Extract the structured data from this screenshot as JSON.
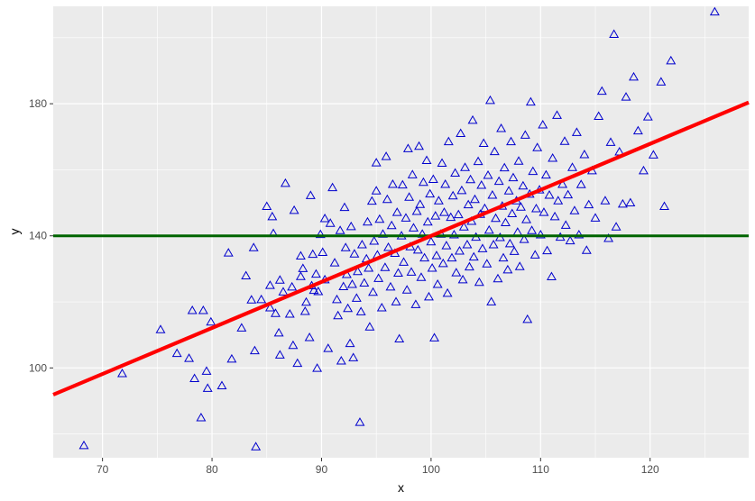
{
  "chart_data": {
    "type": "scatter",
    "title": "",
    "xlabel": "x",
    "ylabel": "y",
    "xlim": [
      65.5,
      129
    ],
    "ylim": [
      72.8,
      209.5
    ],
    "x_ticks": [
      70,
      80,
      90,
      100,
      110,
      120
    ],
    "x_tick_labels": [
      "70",
      "80",
      "90",
      "100",
      "110",
      "120"
    ],
    "y_ticks": [
      100,
      140,
      180
    ],
    "y_tick_labels": [
      "100",
      "140",
      "180"
    ],
    "grid": true,
    "legend": "none",
    "series": [
      {
        "type": "scatter",
        "marker": "open-triangle",
        "color": "#0000cd",
        "points": [
          [
            68.3,
            76.5
          ],
          [
            71.8,
            98.3
          ],
          [
            75.3,
            111.6
          ],
          [
            76.8,
            104.4
          ],
          [
            77.9,
            102.9
          ],
          [
            78.2,
            117.4
          ],
          [
            78.4,
            96.8
          ],
          [
            79.0,
            84.9
          ],
          [
            79.2,
            117.4
          ],
          [
            79.5,
            99.0
          ],
          [
            79.6,
            93.8
          ],
          [
            79.9,
            113.9
          ],
          [
            80.9,
            94.6
          ],
          [
            81.5,
            134.8
          ],
          [
            81.8,
            102.7
          ],
          [
            82.7,
            112.1
          ],
          [
            83.1,
            127.9
          ],
          [
            83.6,
            120.6
          ],
          [
            83.8,
            136.4
          ],
          [
            83.9,
            105.2
          ],
          [
            84.0,
            76.1
          ],
          [
            84.5,
            120.7
          ],
          [
            85.0,
            148.9
          ],
          [
            85.3,
            125.0
          ],
          [
            85.3,
            118.2
          ],
          [
            85.5,
            145.8
          ],
          [
            85.6,
            140.7
          ],
          [
            85.8,
            116.5
          ],
          [
            86.1,
            110.6
          ],
          [
            86.2,
            126.6
          ],
          [
            86.2,
            103.9
          ],
          [
            86.5,
            123.0
          ],
          [
            86.7,
            155.9
          ],
          [
            87.1,
            116.3
          ],
          [
            87.3,
            124.5
          ],
          [
            87.4,
            106.8
          ],
          [
            87.5,
            147.7
          ],
          [
            87.8,
            101.4
          ],
          [
            88.1,
            133.9
          ],
          [
            88.1,
            127.7
          ],
          [
            88.3,
            130.1
          ],
          [
            88.5,
            117.1
          ],
          [
            88.6,
            119.9
          ],
          [
            88.9,
            109.2
          ],
          [
            89.0,
            152.2
          ],
          [
            89.1,
            124.9
          ],
          [
            89.2,
            134.4
          ],
          [
            89.3,
            123.5
          ],
          [
            89.5,
            128.4
          ],
          [
            89.6,
            99.9
          ],
          [
            89.7,
            123.1
          ],
          [
            89.9,
            140.4
          ],
          [
            90.1,
            135.0
          ],
          [
            90.3,
            126.7
          ],
          [
            90.3,
            145.2
          ],
          [
            90.6,
            105.9
          ],
          [
            90.8,
            143.8
          ],
          [
            91.0,
            154.6
          ],
          [
            91.2,
            131.8
          ],
          [
            91.4,
            120.7
          ],
          [
            91.5,
            115.8
          ],
          [
            91.7,
            141.6
          ],
          [
            91.8,
            102.1
          ],
          [
            92.0,
            124.6
          ],
          [
            92.1,
            148.6
          ],
          [
            92.2,
            136.4
          ],
          [
            92.3,
            128.3
          ],
          [
            92.4,
            118.0
          ],
          [
            92.6,
            107.4
          ],
          [
            92.7,
            142.8
          ],
          [
            92.8,
            125.3
          ],
          [
            92.9,
            103.1
          ],
          [
            93.0,
            134.5
          ],
          [
            93.2,
            121.1
          ],
          [
            93.3,
            129.2
          ],
          [
            93.5,
            83.5
          ],
          [
            93.6,
            117.0
          ],
          [
            93.7,
            137.3
          ],
          [
            93.9,
            125.7
          ],
          [
            94.1,
            133.0
          ],
          [
            94.2,
            144.2
          ],
          [
            94.3,
            130.2
          ],
          [
            94.4,
            112.4
          ],
          [
            94.6,
            150.5
          ],
          [
            94.7,
            122.9
          ],
          [
            94.8,
            138.4
          ],
          [
            95.0,
            153.6
          ],
          [
            95.0,
            162.1
          ],
          [
            95.1,
            134.2
          ],
          [
            95.2,
            127.1
          ],
          [
            95.3,
            145.0
          ],
          [
            95.5,
            118.2
          ],
          [
            95.6,
            140.5
          ],
          [
            95.8,
            130.4
          ],
          [
            95.9,
            164.0
          ],
          [
            96.0,
            151.0
          ],
          [
            96.1,
            136.5
          ],
          [
            96.3,
            124.5
          ],
          [
            96.4,
            143.1
          ],
          [
            96.5,
            155.6
          ],
          [
            96.7,
            134.7
          ],
          [
            96.8,
            120.0
          ],
          [
            96.9,
            147.1
          ],
          [
            97.0,
            128.7
          ],
          [
            97.1,
            108.8
          ],
          [
            97.3,
            140.0
          ],
          [
            97.4,
            155.4
          ],
          [
            97.5,
            132.0
          ],
          [
            97.7,
            145.4
          ],
          [
            97.8,
            123.6
          ],
          [
            97.9,
            166.4
          ],
          [
            98.0,
            151.7
          ],
          [
            98.1,
            136.7
          ],
          [
            98.2,
            129.0
          ],
          [
            98.3,
            158.5
          ],
          [
            98.4,
            142.4
          ],
          [
            98.6,
            119.2
          ],
          [
            98.7,
            147.4
          ],
          [
            98.8,
            135.7
          ],
          [
            98.9,
            167.1
          ],
          [
            99.0,
            149.5
          ],
          [
            99.1,
            127.4
          ],
          [
            99.2,
            140.5
          ],
          [
            99.3,
            156.2
          ],
          [
            99.4,
            133.3
          ],
          [
            99.6,
            162.8
          ],
          [
            99.7,
            144.2
          ],
          [
            99.8,
            121.5
          ],
          [
            99.9,
            152.7
          ],
          [
            100.0,
            138.2
          ],
          [
            100.1,
            130.2
          ],
          [
            100.2,
            157.1
          ],
          [
            100.3,
            109.1
          ],
          [
            100.4,
            146.0
          ],
          [
            100.5,
            134.0
          ],
          [
            100.6,
            125.3
          ],
          [
            100.7,
            150.6
          ],
          [
            100.9,
            140.5
          ],
          [
            101.0,
            162.0
          ],
          [
            101.1,
            131.6
          ],
          [
            101.2,
            147.1
          ],
          [
            101.3,
            155.6
          ],
          [
            101.4,
            137.0
          ],
          [
            101.5,
            122.6
          ],
          [
            101.6,
            168.5
          ],
          [
            101.8,
            145.6
          ],
          [
            101.9,
            133.3
          ],
          [
            102.0,
            152.1
          ],
          [
            102.1,
            140.3
          ],
          [
            102.2,
            159.0
          ],
          [
            102.3,
            128.8
          ],
          [
            102.5,
            146.4
          ],
          [
            102.6,
            135.4
          ],
          [
            102.7,
            171.0
          ],
          [
            102.8,
            153.7
          ],
          [
            102.9,
            126.7
          ],
          [
            103.0,
            142.7
          ],
          [
            103.1,
            160.7
          ],
          [
            103.3,
            137.3
          ],
          [
            103.4,
            149.4
          ],
          [
            103.5,
            130.6
          ],
          [
            103.6,
            157.0
          ],
          [
            103.7,
            144.4
          ],
          [
            103.8,
            175.0
          ],
          [
            103.9,
            133.6
          ],
          [
            104.0,
            151.0
          ],
          [
            104.1,
            139.6
          ],
          [
            104.3,
            162.5
          ],
          [
            104.4,
            125.9
          ],
          [
            104.5,
            146.5
          ],
          [
            104.6,
            155.3
          ],
          [
            104.7,
            136.1
          ],
          [
            104.8,
            168.0
          ],
          [
            104.9,
            148.3
          ],
          [
            105.1,
            131.5
          ],
          [
            105.2,
            158.3
          ],
          [
            105.3,
            141.7
          ],
          [
            105.4,
            181.0
          ],
          [
            105.5,
            120.0
          ],
          [
            105.6,
            152.3
          ],
          [
            105.7,
            137.3
          ],
          [
            105.8,
            165.5
          ],
          [
            105.9,
            145.3
          ],
          [
            106.1,
            127.0
          ],
          [
            106.2,
            156.5
          ],
          [
            106.3,
            139.5
          ],
          [
            106.4,
            172.5
          ],
          [
            106.5,
            149.0
          ],
          [
            106.6,
            133.3
          ],
          [
            106.7,
            160.6
          ],
          [
            106.8,
            144.0
          ],
          [
            107.0,
            129.7
          ],
          [
            107.1,
            153.6
          ],
          [
            107.2,
            137.6
          ],
          [
            107.3,
            168.5
          ],
          [
            107.4,
            146.7
          ],
          [
            107.5,
            157.6
          ],
          [
            107.6,
            135.3
          ],
          [
            107.8,
            150.6
          ],
          [
            107.9,
            141.1
          ],
          [
            108.0,
            162.6
          ],
          [
            108.1,
            130.7
          ],
          [
            108.2,
            148.7
          ],
          [
            108.4,
            155.1
          ],
          [
            108.5,
            138.9
          ],
          [
            108.6,
            170.5
          ],
          [
            108.7,
            144.9
          ],
          [
            108.8,
            114.7
          ],
          [
            109.0,
            152.6
          ],
          [
            109.1,
            180.5
          ],
          [
            109.2,
            141.6
          ],
          [
            109.3,
            159.5
          ],
          [
            109.5,
            134.2
          ],
          [
            109.6,
            148.2
          ],
          [
            109.7,
            166.7
          ],
          [
            109.9,
            153.9
          ],
          [
            110.0,
            140.3
          ],
          [
            110.2,
            173.6
          ],
          [
            110.3,
            147.1
          ],
          [
            110.5,
            158.4
          ],
          [
            110.6,
            135.5
          ],
          [
            110.8,
            152.3
          ],
          [
            111.0,
            127.6
          ],
          [
            111.1,
            163.5
          ],
          [
            111.3,
            145.8
          ],
          [
            111.5,
            176.5
          ],
          [
            111.6,
            150.6
          ],
          [
            111.8,
            139.6
          ],
          [
            112.0,
            155.6
          ],
          [
            112.2,
            168.6
          ],
          [
            112.3,
            143.2
          ],
          [
            112.5,
            152.4
          ],
          [
            112.7,
            138.5
          ],
          [
            112.9,
            160.7
          ],
          [
            113.1,
            147.6
          ],
          [
            113.3,
            171.3
          ],
          [
            113.5,
            140.3
          ],
          [
            113.7,
            155.5
          ],
          [
            114.0,
            164.6
          ],
          [
            114.2,
            135.6
          ],
          [
            114.4,
            149.4
          ],
          [
            114.7,
            159.7
          ],
          [
            115.0,
            145.4
          ],
          [
            115.3,
            176.2
          ],
          [
            115.6,
            183.8
          ],
          [
            115.9,
            150.6
          ],
          [
            116.2,
            139.2
          ],
          [
            116.4,
            168.3
          ],
          [
            116.7,
            201.0
          ],
          [
            116.9,
            142.7
          ],
          [
            117.2,
            165.4
          ],
          [
            117.5,
            149.6
          ],
          [
            117.8,
            182.0
          ],
          [
            118.2,
            150.0
          ],
          [
            118.5,
            188.1
          ],
          [
            118.9,
            171.8
          ],
          [
            119.4,
            159.7
          ],
          [
            119.8,
            176.0
          ],
          [
            120.3,
            164.5
          ],
          [
            121.0,
            186.6
          ],
          [
            121.3,
            148.9
          ],
          [
            121.9,
            193.0
          ],
          [
            125.9,
            207.8
          ]
        ]
      },
      {
        "type": "line",
        "name": "",
        "color": "#ff0000",
        "x": [
          65.5,
          129
        ],
        "y": [
          91.9,
          180.4
        ]
      },
      {
        "type": "hline",
        "name": "",
        "color": "#006400",
        "y": 140
      }
    ]
  }
}
